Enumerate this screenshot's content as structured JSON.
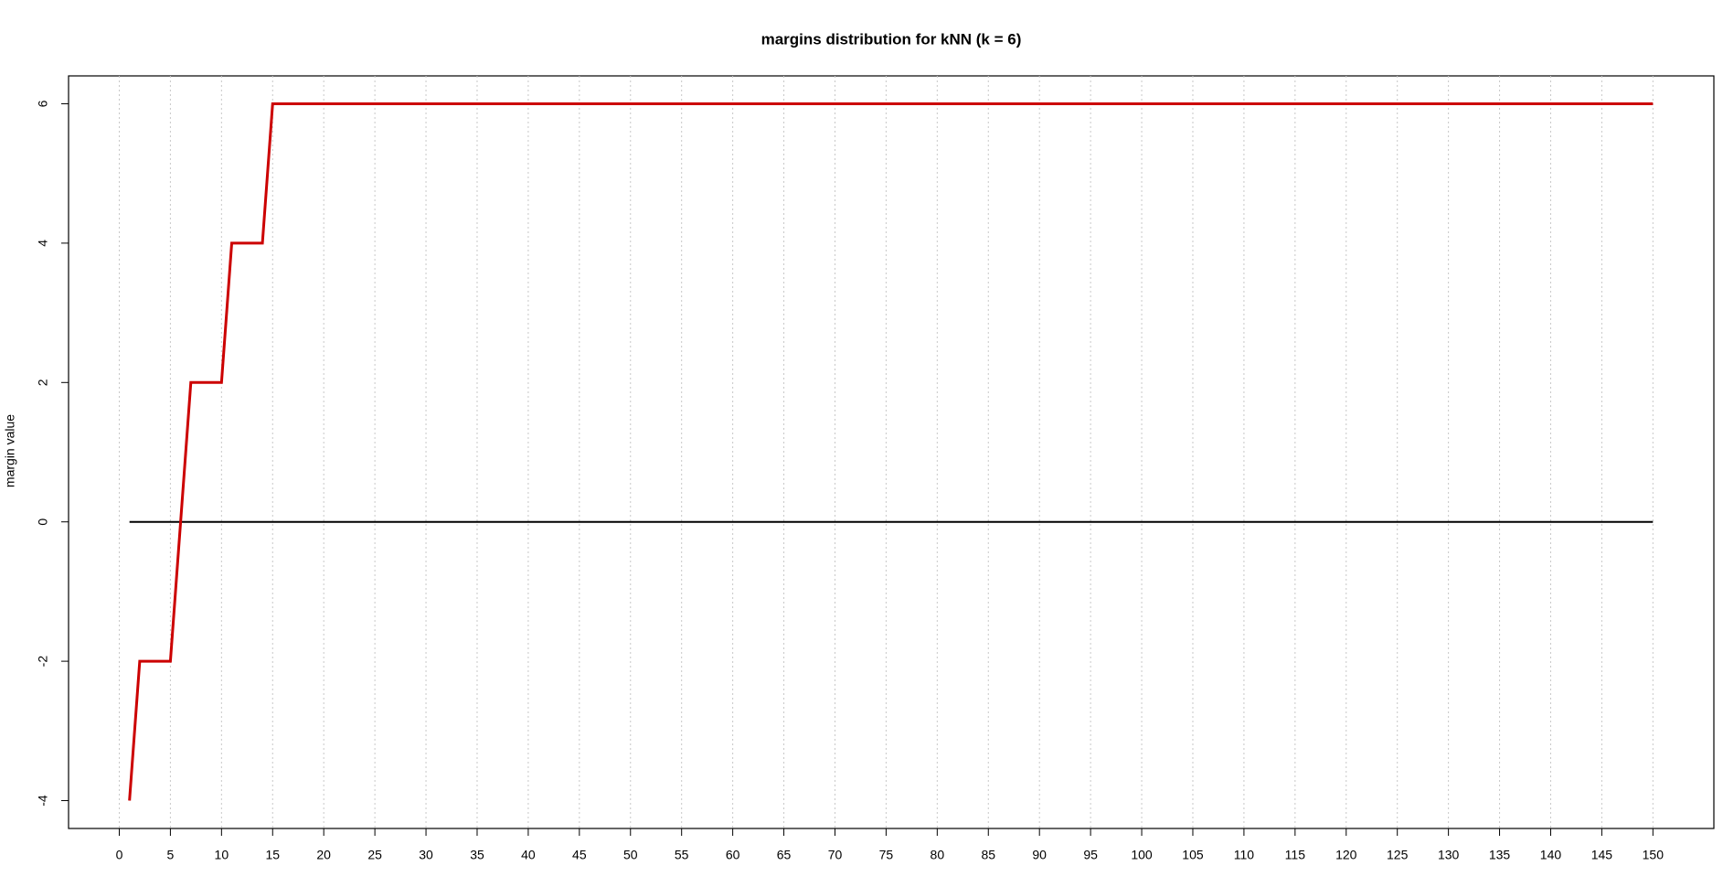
{
  "chart_data": {
    "type": "line",
    "title": "margins distribution for kNN (k = 6)",
    "y_label": "margin value",
    "x": [
      1,
      2,
      5,
      6,
      7,
      10,
      11,
      14,
      15,
      150
    ],
    "series": [
      {
        "color": "#cc0000",
        "values": [
          -4,
          -2,
          -2,
          0,
          2,
          2,
          4,
          4,
          6,
          6
        ]
      },
      {
        "color": "#000000",
        "values": [
          0,
          0,
          0,
          0,
          0,
          0,
          0,
          0,
          0,
          0
        ]
      }
    ],
    "xlim": [
      -4.96,
      155.96
    ],
    "ylim": [
      -4.4,
      6.4
    ],
    "xticks": [
      0,
      5,
      10,
      15,
      20,
      25,
      30,
      35,
      40,
      45,
      50,
      55,
      60,
      65,
      70,
      75,
      80,
      85,
      90,
      95,
      100,
      105,
      110,
      115,
      120,
      125,
      130,
      135,
      140,
      145,
      150
    ],
    "yticks": [
      -4,
      -2,
      0,
      2,
      4,
      6
    ],
    "grid": "x"
  }
}
